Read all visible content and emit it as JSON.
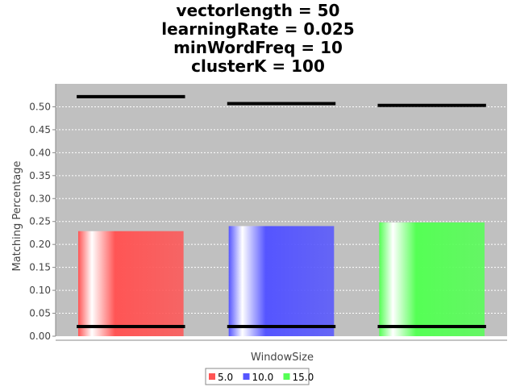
{
  "chart_data": {
    "type": "bar",
    "title_lines": [
      "vectorlength = 50",
      "learningRate = 0.025",
      "minWordFreq = 10",
      "clusterK = 100"
    ],
    "xlabel": "WindowSize",
    "ylabel": "Matching Percentage",
    "ylim": [
      0,
      0.55
    ],
    "yticks": [
      "0.00",
      "0.05",
      "0.10",
      "0.15",
      "0.20",
      "0.25",
      "0.30",
      "0.35",
      "0.40",
      "0.45",
      "0.50"
    ],
    "categories": [
      ""
    ],
    "series": [
      {
        "name": "5.0",
        "values": [
          0.229
        ],
        "interval": [
          0.021,
          0.522
        ],
        "color": "#ff5555"
      },
      {
        "name": "10.0",
        "values": [
          0.24
        ],
        "interval": [
          0.021,
          0.507
        ],
        "color": "#5555ff"
      },
      {
        "name": "15.0",
        "values": [
          0.248
        ],
        "interval": [
          0.021,
          0.503
        ],
        "color": "#55ff55"
      }
    ],
    "grid": true,
    "legend_position": "bottom",
    "plot_background": "#c0c0c0"
  }
}
